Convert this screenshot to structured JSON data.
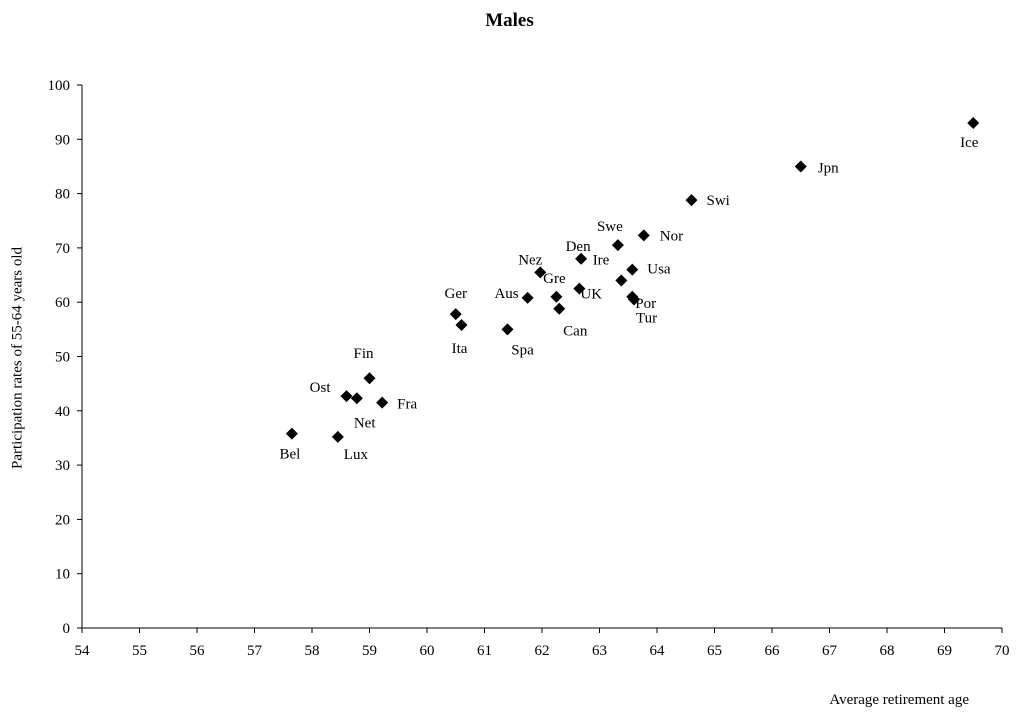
{
  "chart_data": {
    "type": "scatter",
    "title": "Males",
    "xlabel": "Average retirement age",
    "ylabel": "Participation rates of 55-64 years old",
    "xlim": [
      54,
      70
    ],
    "ylim": [
      0,
      100
    ],
    "xticks": [
      "54",
      "55",
      "56",
      "57",
      "58",
      "59",
      "60",
      "61",
      "62",
      "63",
      "64",
      "65",
      "66",
      "67",
      "68",
      "69",
      "70"
    ],
    "yticks": [
      "0",
      "10",
      "20",
      "30",
      "40",
      "50",
      "60",
      "70",
      "80",
      "90",
      "100"
    ],
    "grid": false,
    "marker": "diamond",
    "marker_color": "#000000",
    "points": [
      {
        "label": "Bel",
        "x": 57.65,
        "y": 35.8
      },
      {
        "label": "Lux",
        "x": 58.45,
        "y": 35.2
      },
      {
        "label": "Ost",
        "x": 58.6,
        "y": 42.7
      },
      {
        "label": "Net",
        "x": 58.78,
        "y": 42.3
      },
      {
        "label": "Fin",
        "x": 59.0,
        "y": 46.0
      },
      {
        "label": "Fra",
        "x": 59.22,
        "y": 41.5
      },
      {
        "label": "Ger",
        "x": 60.5,
        "y": 57.8
      },
      {
        "label": "Ita",
        "x": 60.6,
        "y": 55.8
      },
      {
        "label": "Spa",
        "x": 61.4,
        "y": 55.0
      },
      {
        "label": "Aus",
        "x": 61.75,
        "y": 60.8
      },
      {
        "label": "Nez",
        "x": 61.97,
        "y": 65.5
      },
      {
        "label": "Gre",
        "x": 62.25,
        "y": 61.0
      },
      {
        "label": "Can",
        "x": 62.3,
        "y": 58.8
      },
      {
        "label": "UK",
        "x": 62.65,
        "y": 62.5
      },
      {
        "label": "Den",
        "x": 62.68,
        "y": 68.0
      },
      {
        "label": "Swe",
        "x": 63.32,
        "y": 70.5
      },
      {
        "label": "Ire",
        "x": 63.38,
        "y": 64.0
      },
      {
        "label": "Usa",
        "x": 63.57,
        "y": 66.0
      },
      {
        "label": "Por",
        "x": 63.57,
        "y": 61.0
      },
      {
        "label": "Tur",
        "x": 63.6,
        "y": 60.5
      },
      {
        "label": "Nor",
        "x": 63.77,
        "y": 72.3
      },
      {
        "label": "Swi",
        "x": 64.6,
        "y": 78.8
      },
      {
        "label": "Jpn",
        "x": 66.5,
        "y": 85.0
      },
      {
        "label": "Ice",
        "x": 69.5,
        "y": 93.0
      }
    ]
  }
}
